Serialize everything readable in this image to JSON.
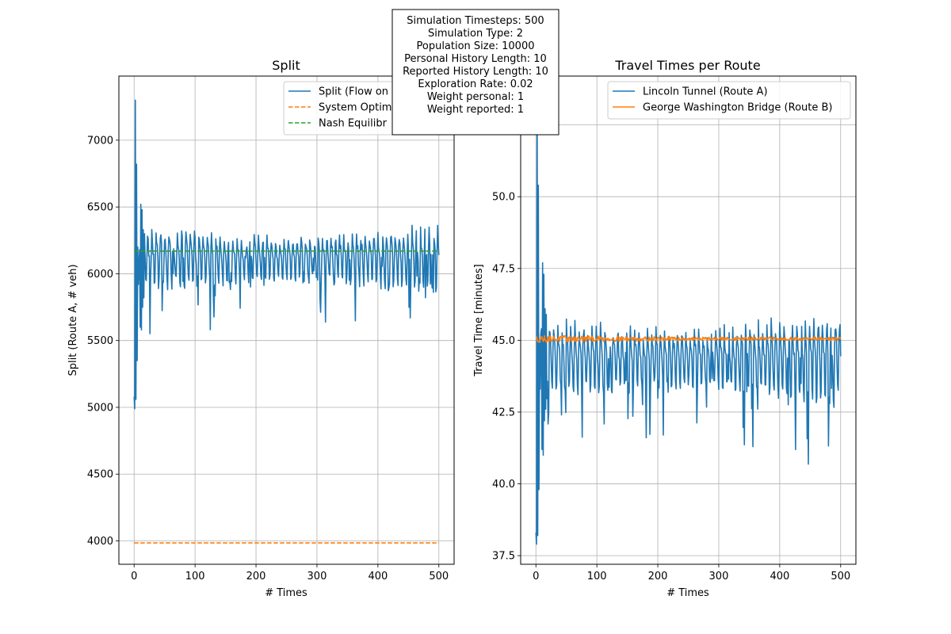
{
  "info_box": {
    "lines": [
      "Simulation Timesteps: 500",
      "Simulation Type: 2",
      "Population Size: 10000",
      "Personal History Length: 10",
      "Reported History Length: 10",
      "Exploration Rate: 0.02",
      "Weight personal: 1",
      "Weight reported: 1"
    ]
  },
  "chart_data": [
    {
      "type": "line",
      "title": "Split",
      "xlabel": "# Times",
      "ylabel": "Split (Route A, # veh)",
      "xlim": [
        -25,
        525
      ],
      "ylim": [
        3825,
        7480
      ],
      "xticks": [
        0,
        100,
        200,
        300,
        400,
        500
      ],
      "yticks": [
        4000,
        4500,
        5000,
        5500,
        6000,
        6500,
        7000
      ],
      "grid": true,
      "legend_position": "top-right",
      "series": [
        {
          "name": "Split (Flow on",
          "style": "solid",
          "color": "#1f77b4",
          "model": "oscillation",
          "initial": [
            5080,
            4990,
            7300,
            5060,
            6820,
            5350,
            6200,
            5920,
            6080,
            6180,
            5600,
            6520,
            5580,
            6480,
            5750,
            6330,
            5820,
            6300
          ],
          "base": 6120,
          "amp_start": 190,
          "amp_mid": 120,
          "amp_end": 200,
          "period": 7.0,
          "range": [
            0,
            500
          ]
        },
        {
          "name": "System Optim",
          "style": "dashed",
          "color": "#ff7f0e",
          "value": 3985,
          "range": [
            0,
            500
          ]
        },
        {
          "name": "Nash Equilibr",
          "style": "dashed",
          "color": "#2ca02c",
          "value": 6170,
          "range": [
            0,
            500
          ]
        }
      ]
    },
    {
      "type": "line",
      "title": "Travel Times per Route",
      "xlabel": "# Times",
      "ylabel": "Travel Time [minutes]",
      "xlim": [
        -25,
        525
      ],
      "ylim": [
        37.2,
        54.2
      ],
      "xticks": [
        0,
        100,
        200,
        300,
        400,
        500
      ],
      "yticks": [
        37.5,
        40.0,
        42.5,
        45.0,
        47.5,
        50.0,
        52.5
      ],
      "ytick_labels": [
        "37.5",
        "40.0",
        "42.5",
        "45.0",
        "47.5",
        "50.0",
        "52.5"
      ],
      "grid": true,
      "legend_position": "top-right",
      "series": [
        {
          "name": "Lincoln Tunnel (Route A)",
          "style": "solid",
          "color": "#1f77b4",
          "model": "oscillation",
          "initial": [
            38.3,
            37.9,
            54.0,
            38.2,
            50.4,
            39.8,
            44.9,
            43.3,
            45.2,
            45.4,
            41.2,
            47.7,
            41.0,
            47.3,
            42.2,
            46.1,
            42.6,
            45.9
          ],
          "base": 44.4,
          "amp_start": 1.1,
          "amp_mid": 0.75,
          "amp_end": 1.3,
          "period": 7.0,
          "range": [
            0,
            500
          ]
        },
        {
          "name": "George Washington Bridge (Route B)",
          "style": "solid",
          "color": "#ff7f0e",
          "model": "flat-noise",
          "base": 45.05,
          "amp_start": 0.12,
          "amp_mid": 0.06,
          "amp_end": 0.06,
          "period": 7.0,
          "range": [
            0,
            500
          ]
        }
      ]
    }
  ]
}
